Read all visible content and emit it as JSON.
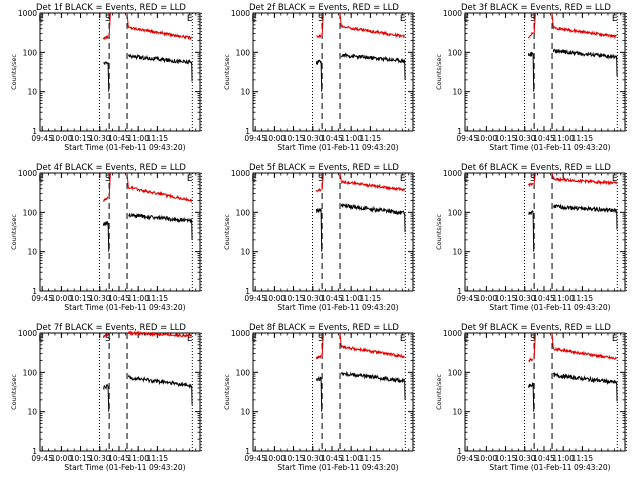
{
  "figure": {
    "layout": "3x3 grid of detector rate panels"
  },
  "chart_data": [
    {
      "type": "line",
      "title": "Det 1f BLACK = Events, RED = LLD",
      "xlabel": "Start Time (01-Feb-11 09:43:20)",
      "ylabel": "Counts/sec",
      "yscale": "log",
      "ylim": [
        1,
        1000
      ],
      "xlim": [
        -60,
        65
      ],
      "x_ticks": [
        "09:45",
        "10:00",
        "10:15",
        "10:30",
        "10:45",
        "11:00",
        "11:15"
      ],
      "y_ticks": [
        "1",
        "10",
        "100",
        "1000"
      ],
      "markers": [
        "E",
        "S",
        "E"
      ],
      "series": [
        {
          "name": "LLD",
          "color": "#e00000",
          "pre": [
            230,
            250
          ],
          "post_start": 430,
          "post_end": 230
        },
        {
          "name": "Events",
          "color": "#000000",
          "pre": [
            50,
            55
          ],
          "post_start": 80,
          "post_end": 55
        }
      ]
    },
    {
      "type": "line",
      "title": "Det 2f BLACK = Events, RED = LLD",
      "xlabel": "Start Time (01-Feb-11 09:43:20)",
      "ylabel": "Counts/sec",
      "yscale": "log",
      "ylim": [
        1,
        1000
      ],
      "xlim": [
        -60,
        65
      ],
      "x_ticks": [
        "09:45",
        "10:00",
        "10:15",
        "10:30",
        "10:45",
        "11:00",
        "11:15"
      ],
      "y_ticks": [
        "1",
        "10",
        "100",
        "1000"
      ],
      "markers": [
        "E",
        "S",
        "E"
      ],
      "series": [
        {
          "name": "LLD",
          "color": "#e00000",
          "pre": [
            250,
            260
          ],
          "post_start": 460,
          "post_end": 250
        },
        {
          "name": "Events",
          "color": "#000000",
          "pre": [
            55,
            60
          ],
          "post_start": 85,
          "post_end": 60
        }
      ]
    },
    {
      "type": "line",
      "title": "Det 3f BLACK = Events, RED = LLD",
      "xlabel": "Start Time (01-Feb-11 09:43:20)",
      "ylabel": "Counts/sec",
      "yscale": "log",
      "ylim": [
        1,
        1000
      ],
      "xlim": [
        -60,
        65
      ],
      "x_ticks": [
        "09:45",
        "10:00",
        "10:15",
        "10:30",
        "10:45",
        "11:00",
        "11:15"
      ],
      "y_ticks": [
        "1",
        "10",
        "100",
        "1000"
      ],
      "markers": [
        "E",
        "S",
        "E"
      ],
      "series": [
        {
          "name": "LLD",
          "color": "#e00000",
          "pre": [
            250,
            300
          ],
          "post_start": 420,
          "post_end": 250
        },
        {
          "name": "Events",
          "color": "#000000",
          "pre": [
            85,
            90
          ],
          "post_start": 110,
          "post_end": 75
        }
      ]
    },
    {
      "type": "line",
      "title": "Det 4f BLACK = Events, RED = LLD",
      "xlabel": "Start Time (01-Feb-11 09:43:20)",
      "ylabel": "Counts/sec",
      "yscale": "log",
      "ylim": [
        1,
        1000
      ],
      "xlim": [
        -60,
        65
      ],
      "x_ticks": [
        "09:45",
        "10:00",
        "10:15",
        "10:30",
        "10:45",
        "11:00",
        "11:15"
      ],
      "y_ticks": [
        "1",
        "10",
        "100",
        "1000"
      ],
      "markers": [
        "E",
        "S",
        "E"
      ],
      "series": [
        {
          "name": "LLD",
          "color": "#e00000",
          "pre": [
            200,
            230
          ],
          "post_start": 430,
          "post_end": 200
        },
        {
          "name": "Events",
          "color": "#000000",
          "pre": [
            50,
            55
          ],
          "post_start": 85,
          "post_end": 60
        }
      ]
    },
    {
      "type": "line",
      "title": "Det 5f BLACK = Events, RED = LLD",
      "xlabel": "Start Time (01-Feb-11 09:43:20)",
      "ylabel": "Counts/sec",
      "yscale": "log",
      "ylim": [
        1,
        1000
      ],
      "xlim": [
        -60,
        65
      ],
      "x_ticks": [
        "09:45",
        "10:00",
        "10:15",
        "10:30",
        "10:45",
        "11:00",
        "11:15"
      ],
      "y_ticks": [
        "1",
        "10",
        "100",
        "1000"
      ],
      "markers": [
        "E",
        "S",
        "E"
      ],
      "series": [
        {
          "name": "LLD",
          "color": "#e00000",
          "pre": [
            350,
            380
          ],
          "post_start": 600,
          "post_end": 380
        },
        {
          "name": "Events",
          "color": "#000000",
          "pre": [
            110,
            115
          ],
          "post_start": 150,
          "post_end": 95
        }
      ]
    },
    {
      "type": "line",
      "title": "Det 6f BLACK = Events, RED = LLD",
      "xlabel": "Start Time (01-Feb-11 09:43:20)",
      "ylabel": "Counts/sec",
      "yscale": "log",
      "ylim": [
        1,
        1000
      ],
      "xlim": [
        -60,
        65
      ],
      "x_ticks": [
        "09:45",
        "10:00",
        "10:15",
        "10:30",
        "10:45",
        "11:00",
        "11:15"
      ],
      "y_ticks": [
        "1",
        "10",
        "100",
        "1000"
      ],
      "markers": [
        "E",
        "S",
        "E"
      ],
      "series": [
        {
          "name": "LLD",
          "color": "#e00000",
          "pre": [
            500,
            550
          ],
          "post_start": 700,
          "post_end": 550
        },
        {
          "name": "Events",
          "color": "#000000",
          "pre": [
            95,
            100
          ],
          "post_start": 140,
          "post_end": 110
        }
      ]
    },
    {
      "type": "line",
      "title": "Det 7f BLACK = Events, RED = LLD",
      "xlabel": "Start Time (01-Feb-11 09:43:20)",
      "ylabel": "Counts/sec",
      "yscale": "log",
      "ylim": [
        1,
        1000
      ],
      "xlim": [
        -60,
        65
      ],
      "x_ticks": [
        "09:45",
        "10:00",
        "10:15",
        "10:30",
        "10:45",
        "11:00",
        "11:15"
      ],
      "y_ticks": [
        "1",
        "10",
        "100",
        "1000"
      ],
      "markers": [
        "E",
        "S",
        "E"
      ],
      "series": [
        {
          "name": "LLD",
          "color": "#e00000",
          "pre": [
            800,
            900
          ],
          "post_start": 1000,
          "post_end": 850
        },
        {
          "name": "Events",
          "color": "#000000",
          "pre": [
            40,
            45
          ],
          "post_start": 75,
          "post_end": 45
        }
      ]
    },
    {
      "type": "line",
      "title": "Det 8f BLACK = Events, RED = LLD",
      "xlabel": "Start Time (01-Feb-11 09:43:20)",
      "ylabel": "Counts/sec",
      "yscale": "log",
      "ylim": [
        1,
        1000
      ],
      "xlim": [
        -60,
        65
      ],
      "x_ticks": [
        "09:45",
        "10:00",
        "10:15",
        "10:30",
        "10:45",
        "11:00",
        "11:15"
      ],
      "y_ticks": [
        "1",
        "10",
        "100",
        "1000"
      ],
      "markers": [
        "E",
        "S",
        "E"
      ],
      "series": [
        {
          "name": "LLD",
          "color": "#e00000",
          "pre": [
            230,
            250
          ],
          "post_start": 450,
          "post_end": 250
        },
        {
          "name": "Events",
          "color": "#000000",
          "pre": [
            65,
            70
          ],
          "post_start": 95,
          "post_end": 60
        }
      ]
    },
    {
      "type": "line",
      "title": "Det 9f BLACK = Events, RED = LLD",
      "xlabel": "Start Time (01-Feb-11 09:43:20)",
      "ylabel": "Counts/sec",
      "yscale": "log",
      "ylim": [
        1,
        1000
      ],
      "xlim": [
        -60,
        65
      ],
      "x_ticks": [
        "09:45",
        "10:00",
        "10:15",
        "10:30",
        "10:45",
        "11:00",
        "11:15"
      ],
      "y_ticks": [
        "1",
        "10",
        "100",
        "1000"
      ],
      "markers": [
        "E",
        "S",
        "E"
      ],
      "series": [
        {
          "name": "LLD",
          "color": "#e00000",
          "pre": [
            200,
            220
          ],
          "post_start": 400,
          "post_end": 220
        },
        {
          "name": "Events",
          "color": "#000000",
          "pre": [
            45,
            50
          ],
          "post_start": 85,
          "post_end": 55
        }
      ]
    }
  ]
}
